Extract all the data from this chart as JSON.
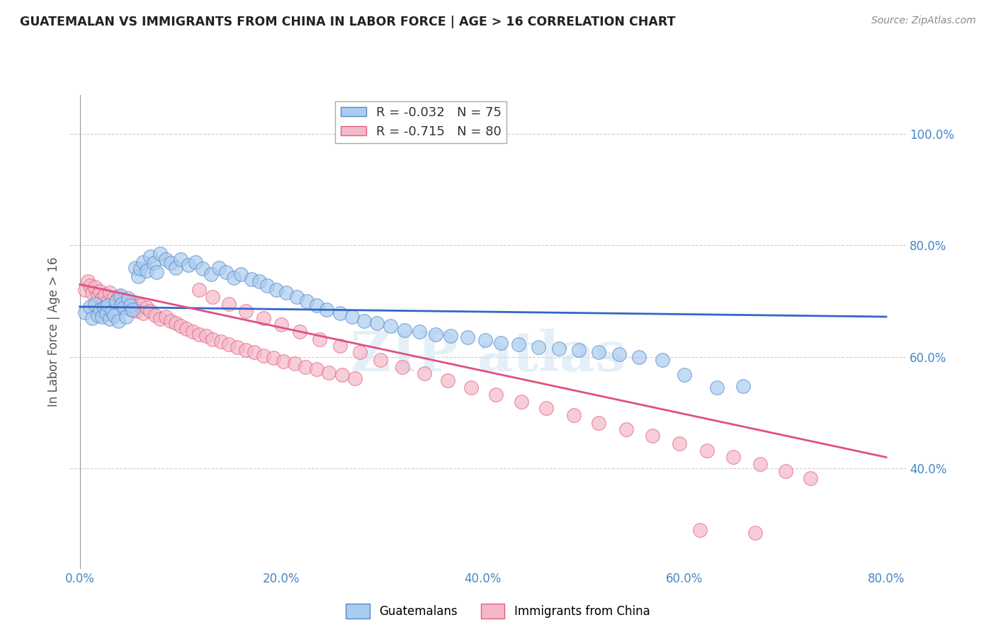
{
  "title": "GUATEMALAN VS IMMIGRANTS FROM CHINA IN LABOR FORCE | AGE > 16 CORRELATION CHART",
  "source": "Source: ZipAtlas.com",
  "ylabel_left": "In Labor Force | Age > 16",
  "x_tick_labels": [
    "0.0%",
    "20.0%",
    "40.0%",
    "60.0%",
    "80.0%"
  ],
  "x_tick_values": [
    0.0,
    0.2,
    0.4,
    0.6,
    0.8
  ],
  "y_tick_labels": [
    "40.0%",
    "60.0%",
    "80.0%",
    "100.0%"
  ],
  "y_tick_values": [
    0.4,
    0.6,
    0.8,
    1.0
  ],
  "xlim": [
    -0.01,
    0.82
  ],
  "ylim": [
    0.22,
    1.07
  ],
  "blue_R": -0.032,
  "blue_N": 75,
  "pink_R": -0.715,
  "pink_N": 80,
  "blue_color": "#aaccee",
  "pink_color": "#f4b8c8",
  "blue_edge_color": "#5588cc",
  "pink_edge_color": "#e06080",
  "blue_line_color": "#3366cc",
  "pink_line_color": "#e05080",
  "legend_label_blue": "Guatemalans",
  "legend_label_pink": "Immigrants from China",
  "background_color": "#ffffff",
  "grid_color": "#cccccc",
  "title_color": "#222222",
  "axis_label_color": "#4488cc",
  "blue_line_x0": 0.0,
  "blue_line_x1": 0.8,
  "blue_line_y0": 0.69,
  "blue_line_y1": 0.672,
  "pink_line_x0": 0.0,
  "pink_line_x1": 0.8,
  "pink_line_y0": 0.73,
  "pink_line_y1": 0.42,
  "blue_scatter_x": [
    0.005,
    0.01,
    0.012,
    0.015,
    0.018,
    0.02,
    0.022,
    0.024,
    0.026,
    0.028,
    0.03,
    0.032,
    0.034,
    0.036,
    0.038,
    0.04,
    0.042,
    0.044,
    0.046,
    0.048,
    0.05,
    0.052,
    0.055,
    0.058,
    0.06,
    0.063,
    0.066,
    0.07,
    0.073,
    0.076,
    0.08,
    0.085,
    0.09,
    0.095,
    0.1,
    0.108,
    0.115,
    0.122,
    0.13,
    0.138,
    0.145,
    0.153,
    0.16,
    0.17,
    0.178,
    0.186,
    0.195,
    0.205,
    0.215,
    0.225,
    0.235,
    0.245,
    0.258,
    0.27,
    0.282,
    0.295,
    0.308,
    0.322,
    0.337,
    0.353,
    0.368,
    0.385,
    0.402,
    0.418,
    0.435,
    0.455,
    0.475,
    0.495,
    0.515,
    0.535,
    0.555,
    0.578,
    0.6,
    0.632,
    0.658
  ],
  "blue_scatter_y": [
    0.68,
    0.69,
    0.67,
    0.695,
    0.675,
    0.685,
    0.672,
    0.688,
    0.678,
    0.692,
    0.668,
    0.682,
    0.675,
    0.7,
    0.665,
    0.71,
    0.695,
    0.688,
    0.672,
    0.705,
    0.692,
    0.685,
    0.76,
    0.745,
    0.758,
    0.77,
    0.755,
    0.78,
    0.768,
    0.752,
    0.785,
    0.775,
    0.768,
    0.76,
    0.775,
    0.765,
    0.77,
    0.758,
    0.748,
    0.76,
    0.752,
    0.742,
    0.748,
    0.74,
    0.735,
    0.728,
    0.72,
    0.715,
    0.708,
    0.7,
    0.692,
    0.685,
    0.678,
    0.672,
    0.665,
    0.66,
    0.655,
    0.648,
    0.645,
    0.64,
    0.638,
    0.635,
    0.63,
    0.625,
    0.622,
    0.618,
    0.615,
    0.612,
    0.608,
    0.605,
    0.6,
    0.595,
    0.568,
    0.545,
    0.548
  ],
  "pink_scatter_x": [
    0.005,
    0.008,
    0.01,
    0.012,
    0.015,
    0.018,
    0.02,
    0.022,
    0.025,
    0.028,
    0.03,
    0.033,
    0.036,
    0.038,
    0.04,
    0.043,
    0.046,
    0.048,
    0.05,
    0.053,
    0.056,
    0.06,
    0.063,
    0.066,
    0.07,
    0.075,
    0.08,
    0.085,
    0.09,
    0.095,
    0.1,
    0.106,
    0.112,
    0.118,
    0.125,
    0.132,
    0.14,
    0.148,
    0.156,
    0.165,
    0.173,
    0.182,
    0.192,
    0.202,
    0.213,
    0.224,
    0.235,
    0.247,
    0.26,
    0.273,
    0.118,
    0.132,
    0.148,
    0.165,
    0.182,
    0.2,
    0.218,
    0.238,
    0.258,
    0.278,
    0.298,
    0.32,
    0.342,
    0.365,
    0.388,
    0.413,
    0.438,
    0.463,
    0.49,
    0.515,
    0.542,
    0.568,
    0.595,
    0.622,
    0.648,
    0.675,
    0.7,
    0.725,
    0.615,
    0.67
  ],
  "pink_scatter_y": [
    0.72,
    0.735,
    0.728,
    0.715,
    0.725,
    0.71,
    0.718,
    0.705,
    0.712,
    0.7,
    0.715,
    0.705,
    0.695,
    0.708,
    0.692,
    0.702,
    0.688,
    0.698,
    0.685,
    0.695,
    0.682,
    0.692,
    0.678,
    0.688,
    0.682,
    0.675,
    0.668,
    0.672,
    0.665,
    0.66,
    0.655,
    0.65,
    0.645,
    0.64,
    0.638,
    0.632,
    0.628,
    0.622,
    0.618,
    0.612,
    0.608,
    0.602,
    0.598,
    0.592,
    0.588,
    0.582,
    0.578,
    0.572,
    0.568,
    0.562,
    0.72,
    0.708,
    0.695,
    0.682,
    0.67,
    0.658,
    0.645,
    0.632,
    0.62,
    0.608,
    0.595,
    0.582,
    0.57,
    0.558,
    0.545,
    0.532,
    0.52,
    0.508,
    0.495,
    0.482,
    0.47,
    0.458,
    0.445,
    0.432,
    0.42,
    0.408,
    0.395,
    0.382,
    0.29,
    0.285
  ]
}
